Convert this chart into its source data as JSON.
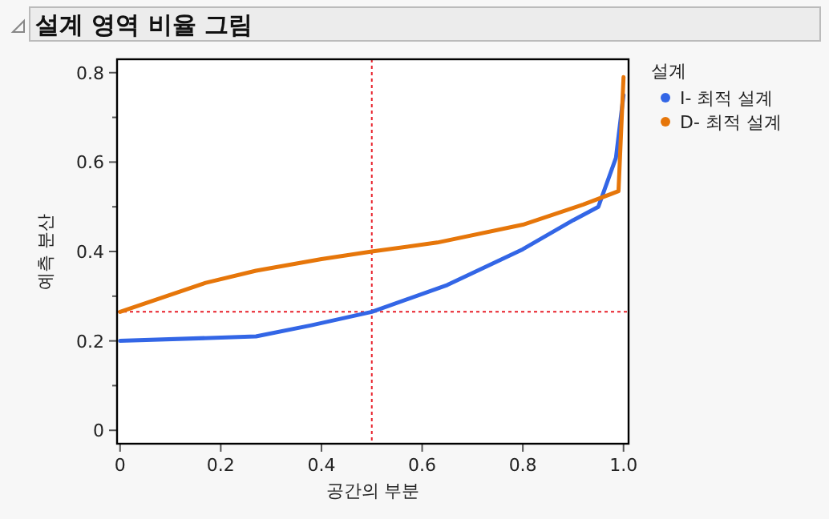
{
  "chart_data": {
    "type": "line",
    "title": "설계 영역 비율 그림",
    "xlabel": "공간의 부분",
    "ylabel": "예측 분산",
    "legend_title": "설계",
    "legend": "right",
    "grid": false,
    "marker": "none",
    "line_style": "solid",
    "xlim": [
      -0.006,
      1.01
    ],
    "ylim": [
      -0.03,
      0.83
    ],
    "xticks": [
      0,
      0.2,
      0.4,
      0.6,
      0.8,
      {
        "value": 1.0,
        "label": "1.0"
      }
    ],
    "yticks": [
      0,
      {
        "value": 0.1,
        "label": null
      },
      0.2,
      {
        "value": 0.3,
        "label": null
      },
      0.4,
      {
        "value": 0.5,
        "label": null
      },
      0.6,
      {
        "value": 0.7,
        "label": null
      },
      0.8
    ],
    "series": [
      {
        "name": "I- 최적 설계",
        "color": "#3366e6",
        "x": [
          0,
          0.27,
          0.38,
          0.5,
          0.65,
          0.8,
          0.9,
          0.95,
          0.985,
          1.0
        ],
        "values": [
          0.2,
          0.21,
          0.235,
          0.265,
          0.325,
          0.405,
          0.47,
          0.5,
          0.61,
          0.75
        ]
      },
      {
        "name": "D- 최적 설계",
        "color": "#e6760a",
        "x": [
          0,
          0.17,
          0.27,
          0.4,
          0.5,
          0.63,
          0.8,
          0.92,
          0.99,
          1.0
        ],
        "values": [
          0.265,
          0.33,
          0.357,
          0.383,
          0.4,
          0.42,
          0.46,
          0.505,
          0.535,
          0.79
        ]
      }
    ],
    "ref_lines": [
      {
        "axis": "x",
        "value": 0.5,
        "color": "#e8202a",
        "line_style": "dotted"
      },
      {
        "axis": "y",
        "value": 0.265,
        "color": "#e8202a",
        "line_style": "dotted"
      }
    ]
  }
}
